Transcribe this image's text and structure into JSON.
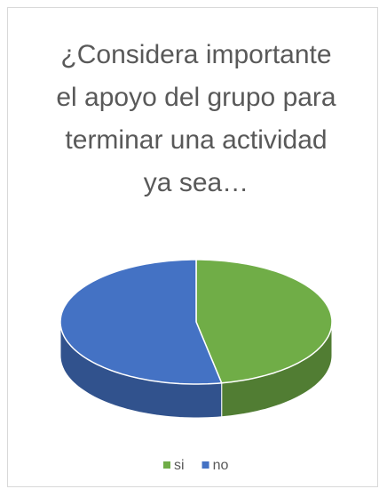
{
  "chart_data": {
    "type": "pie",
    "title": "¿Considera importante el apoyo del grupo para terminar una actividad ya sea…",
    "categories": [
      "si",
      "no"
    ],
    "values": [
      47,
      53
    ],
    "colors": [
      "#70ad47",
      "#4472c4"
    ],
    "legend": "bottom"
  }
}
